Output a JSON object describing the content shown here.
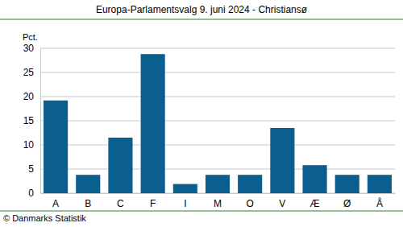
{
  "chart_data": {
    "type": "bar",
    "title": "Europa-Parlamentsvalg 9. juni 2024 - Christiansø",
    "ylabel": "Pct.",
    "source": "© Danmarks Statistik",
    "categories": [
      "A",
      "B",
      "C",
      "F",
      "I",
      "M",
      "O",
      "V",
      "Æ",
      "Ø",
      "Å"
    ],
    "values": [
      19.2,
      3.8,
      11.5,
      28.8,
      1.9,
      3.8,
      3.8,
      13.5,
      5.8,
      3.8,
      3.8
    ],
    "color": "#0b5f8e",
    "ylim": [
      0,
      30
    ],
    "yticks": [
      0,
      5,
      10,
      15,
      20,
      25,
      30
    ],
    "grid": true
  }
}
